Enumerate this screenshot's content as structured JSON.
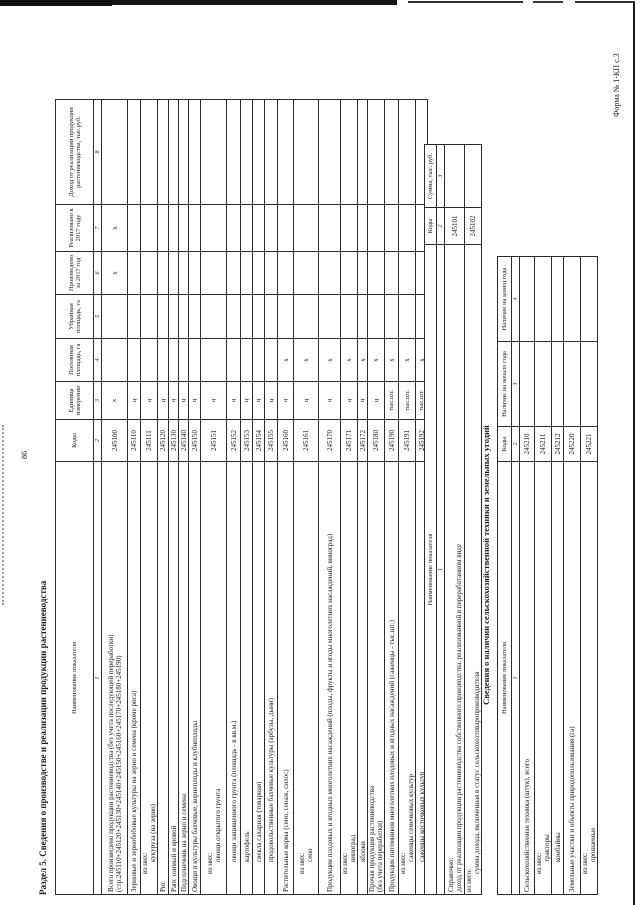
{
  "page": {
    "number": "86",
    "form_label": "Форма № 1-КП с.3",
    "section_title": "Раздел 5. Сведения о производстве и реализации продукции растениеводства"
  },
  "main_table": {
    "columns": [
      "Наименование показателя",
      "Коды",
      "Единица измерения",
      "Посеянная площадь, га",
      "Убранная площадь, га",
      "Произведено за 2017 год",
      "Реализовано в 2017 году",
      "Доход от реализации продукции растениеводства, тыс.руб."
    ],
    "column_numbers": [
      "1",
      "2",
      "3",
      "4",
      "5",
      "6",
      "7",
      "8"
    ],
    "rows": [
      {
        "name_lines": [
          "Всего произведено продукции растениеводства (без учета последующей переработки)",
          "(стр.245110+245120+245130+245140+245150+245160+245170+245180+245190)"
        ],
        "indents": [
          0,
          0
        ],
        "code": "245100",
        "unit": "х",
        "values": [
          "",
          "",
          "х",
          "х",
          ""
        ]
      },
      {
        "name_lines": [
          "Зерновые и зернобобовые культуры на зерно и семена (кроме риса)"
        ],
        "indents": [
          0
        ],
        "code": "245110",
        "unit": "ц",
        "values": [
          "",
          "",
          "",
          "",
          ""
        ]
      },
      {
        "name_lines": [
          "из них:",
          "кукуруза (на зерно)"
        ],
        "indents": [
          1,
          2
        ],
        "code": "245111",
        "unit": "ц",
        "values": [
          "",
          "",
          "",
          "",
          ""
        ]
      },
      {
        "name_lines": [
          "Рис"
        ],
        "indents": [
          0
        ],
        "code": "245120",
        "unit": "ц",
        "values": [
          "",
          "",
          "",
          "",
          ""
        ]
      },
      {
        "name_lines": [
          "Рапс озимый и яровой"
        ],
        "indents": [
          0
        ],
        "code": "245130",
        "unit": "ц",
        "values": [
          "",
          "",
          "",
          "",
          ""
        ]
      },
      {
        "name_lines": [
          "Подсолнечник на зерно и семена"
        ],
        "indents": [
          0
        ],
        "code": "245140",
        "unit": "ц",
        "values": [
          "",
          "",
          "",
          "",
          ""
        ]
      },
      {
        "name_lines": [
          "Овощи и культуры бахчевые, корнеплоды и клубнеплоды"
        ],
        "indents": [
          0
        ],
        "code": "245150",
        "unit": "ц",
        "values": [
          "",
          "",
          "",
          "",
          ""
        ]
      },
      {
        "name_lines": [
          "из них:",
          "овощи открытого грунта"
        ],
        "indents": [
          1,
          2
        ],
        "code": "245151",
        "unit": "ц",
        "values": [
          "",
          "",
          "",
          "",
          ""
        ]
      },
      {
        "name_lines": [
          "овощи защищенного грунта (площадь - в кв.м.)"
        ],
        "indents": [
          2
        ],
        "code": "245152",
        "unit": "ц",
        "values": [
          "",
          "",
          "",
          "",
          ""
        ]
      },
      {
        "name_lines": [
          "картофель"
        ],
        "indents": [
          2
        ],
        "code": "245153",
        "unit": "ц",
        "values": [
          "",
          "",
          "",
          "",
          ""
        ]
      },
      {
        "name_lines": [
          "свекла сахарная (товарная)"
        ],
        "indents": [
          2
        ],
        "code": "245154",
        "unit": "ц",
        "values": [
          "",
          "",
          "",
          "",
          ""
        ]
      },
      {
        "name_lines": [
          "продовольственные бахчевые культуры (арбузы, дыни)"
        ],
        "indents": [
          2
        ],
        "code": "245155",
        "unit": "ц",
        "values": [
          "",
          "",
          "",
          "",
          ""
        ]
      },
      {
        "name_lines": [
          "Растительные корма (сено, сенаж, силос)"
        ],
        "indents": [
          0
        ],
        "code": "245160",
        "unit": "ц",
        "values": [
          "х",
          "",
          "",
          "",
          ""
        ]
      },
      {
        "name_lines": [
          "из них:",
          "сено"
        ],
        "indents": [
          1,
          2
        ],
        "code": "245161",
        "unit": "ц",
        "values": [
          "х",
          "",
          "",
          "",
          ""
        ]
      },
      {
        "name_lines": [
          "Продукция плодовых и ягодных многолетних насаждений (плоды, фрукты и ягоды многолетних насаждений, виноград)"
        ],
        "indents": [
          0
        ],
        "code": "245170",
        "unit": "ц",
        "values": [
          "х",
          "",
          "",
          "",
          ""
        ]
      },
      {
        "name_lines": [
          "из них:",
          "виноград"
        ],
        "indents": [
          1,
          2
        ],
        "code": "245171",
        "unit": "ц",
        "values": [
          "х",
          "",
          "",
          "",
          ""
        ]
      },
      {
        "name_lines": [
          "яблоки"
        ],
        "indents": [
          2
        ],
        "code": "245172",
        "unit": "ц",
        "values": [
          "х",
          "",
          "",
          "",
          ""
        ]
      },
      {
        "name_lines": [
          "Прочая продукция растениеводства",
          "(без учета переработки)"
        ],
        "indents": [
          0,
          0
        ],
        "code": "245180",
        "unit": "ц",
        "values": [
          "х",
          "",
          "",
          "",
          ""
        ]
      },
      {
        "name_lines": [
          "Продукция питомников многолетних плодовых и ягодных насаждений (саженцы - тыс.шт.)"
        ],
        "indents": [
          0
        ],
        "code": "245190",
        "unit": "тыс.шт.",
        "values": [
          "х",
          "",
          "",
          "",
          ""
        ]
      },
      {
        "name_lines": [
          "из них:",
          "саженцы семечковых культур"
        ],
        "indents": [
          1,
          2
        ],
        "code": "245191",
        "unit": "тыс.шт.",
        "values": [
          "х",
          "",
          "",
          "",
          ""
        ]
      },
      {
        "name_lines": [
          "саженцы косточковых культур"
        ],
        "indents": [
          2
        ],
        "code": "245192",
        "unit": "тыс.шт.",
        "values": [
          "х",
          "",
          "",
          "",
          ""
        ]
      }
    ]
  },
  "reference_table": {
    "columns": [
      "Наименование показателя",
      "Коды",
      "Сумма, тыс. руб."
    ],
    "column_numbers": [
      "1",
      "2",
      "3"
    ],
    "rows": [
      {
        "name_lines": [
          "Справочно:",
          "доход от реализации продукции растениеводства собственного производства, реализованной в переработанном виде"
        ],
        "indents": [
          0,
          0
        ],
        "code": "245101",
        "values": [
          ""
        ]
      },
      {
        "name_lines": [
          "из него:",
          "сумма дохода, включенная в статус сельскохозтоваропроизводителя"
        ],
        "indents": [
          0,
          1
        ],
        "code": "245102",
        "values": [
          ""
        ]
      }
    ]
  },
  "equipment_table": {
    "title": "Сведения о наличии сельскохозяйственной техники и земельных угодий",
    "columns": [
      "Наименование показателя",
      "Коды",
      "Наличие на начало года",
      "Наличие на конец года"
    ],
    "column_numbers": [
      "1",
      "2",
      "3",
      "4"
    ],
    "rows": [
      {
        "name_lines": [
          "Сельскохозяйственная техника (штук), всего"
        ],
        "indents": [
          0
        ],
        "code": "245210",
        "values": [
          "",
          ""
        ]
      },
      {
        "name_lines": [
          "из них:",
          "тракторы"
        ],
        "indents": [
          1,
          2
        ],
        "code": "245211",
        "values": [
          "",
          ""
        ]
      },
      {
        "name_lines": [
          "комбайны"
        ],
        "indents": [
          2
        ],
        "code": "245212",
        "values": [
          "",
          ""
        ]
      },
      {
        "name_lines": [
          "Земельные участки и объекты природопользования (га)"
        ],
        "indents": [
          0
        ],
        "code": "245220",
        "values": [
          "",
          ""
        ]
      },
      {
        "name_lines": [
          "из них:",
          "орошаемые"
        ],
        "indents": [
          1,
          2
        ],
        "code": "245221",
        "values": [
          "",
          ""
        ]
      }
    ]
  },
  "colors": {
    "ink": "#1c1c1c",
    "border": "#2b2b2b",
    "background": "#ffffff"
  }
}
